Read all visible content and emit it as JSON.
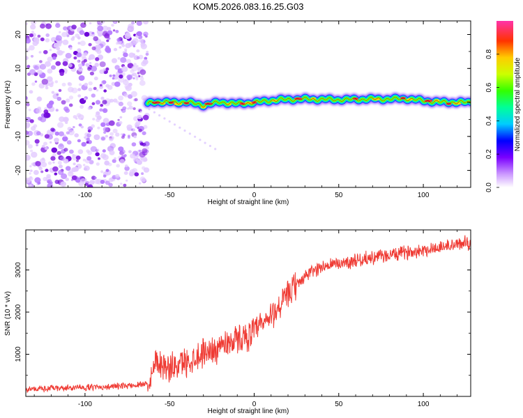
{
  "chart_data": [
    {
      "type": "heatmap",
      "title": "KOM5.2026.083.16.25.G03",
      "xlabel": "Height of straight line (km)",
      "ylabel": "Frequency (Hz)",
      "xlim": [
        -135,
        128
      ],
      "ylim": [
        -25,
        24
      ],
      "xticks": [
        -100,
        -50,
        0,
        50,
        100
      ],
      "yticks": [
        -20,
        -10,
        0,
        10,
        20
      ],
      "noise_region_x": [
        -135,
        -63
      ],
      "ridge": {
        "x": [
          -63,
          -60,
          -50,
          -40,
          -30,
          -20,
          -10,
          0,
          10,
          20,
          30,
          40,
          50,
          60,
          70,
          80,
          90,
          100,
          110,
          128
        ],
        "frequency": [
          -0.5,
          0.2,
          0.0,
          0.1,
          -0.8,
          0.1,
          -0.4,
          0.0,
          0.6,
          0.9,
          1.0,
          0.9,
          0.8,
          0.9,
          1.0,
          1.0,
          1.1,
          0.5,
          0.1,
          0.0
        ]
      },
      "colorbar": {
        "label": "Normalized spectral amplitude",
        "range": [
          0.0,
          1.0
        ],
        "ticks": [
          "0.0",
          "0.2",
          "0.4",
          "0.6",
          "0.8"
        ]
      }
    },
    {
      "type": "line",
      "xlabel": "Height of straight line (km)",
      "ylabel": "SNR (10 * v/v)",
      "xlim": [
        -135,
        128
      ],
      "ylim": [
        0,
        3950
      ],
      "xticks": [
        -100,
        -50,
        0,
        50,
        100
      ],
      "yticks": [
        1000,
        2000,
        3000
      ],
      "series": [
        {
          "name": "SNR",
          "color": "#ef3a33",
          "x": [
            -135,
            -120,
            -100,
            -80,
            -70,
            -63,
            -60,
            -58,
            -55,
            -50,
            -45,
            -40,
            -35,
            -30,
            -25,
            -20,
            -15,
            -10,
            -5,
            0,
            5,
            10,
            15,
            20,
            25,
            30,
            35,
            40,
            50,
            60,
            70,
            80,
            90,
            100,
            110,
            120,
            128
          ],
          "y": [
            170,
            190,
            210,
            240,
            270,
            320,
            560,
            950,
            780,
            650,
            760,
            820,
            930,
            1050,
            1080,
            1200,
            1300,
            1350,
            1420,
            1530,
            1700,
            1900,
            2150,
            2400,
            2650,
            2850,
            2980,
            3080,
            3150,
            3230,
            3290,
            3350,
            3420,
            3480,
            3540,
            3600,
            3660
          ]
        }
      ]
    }
  ]
}
